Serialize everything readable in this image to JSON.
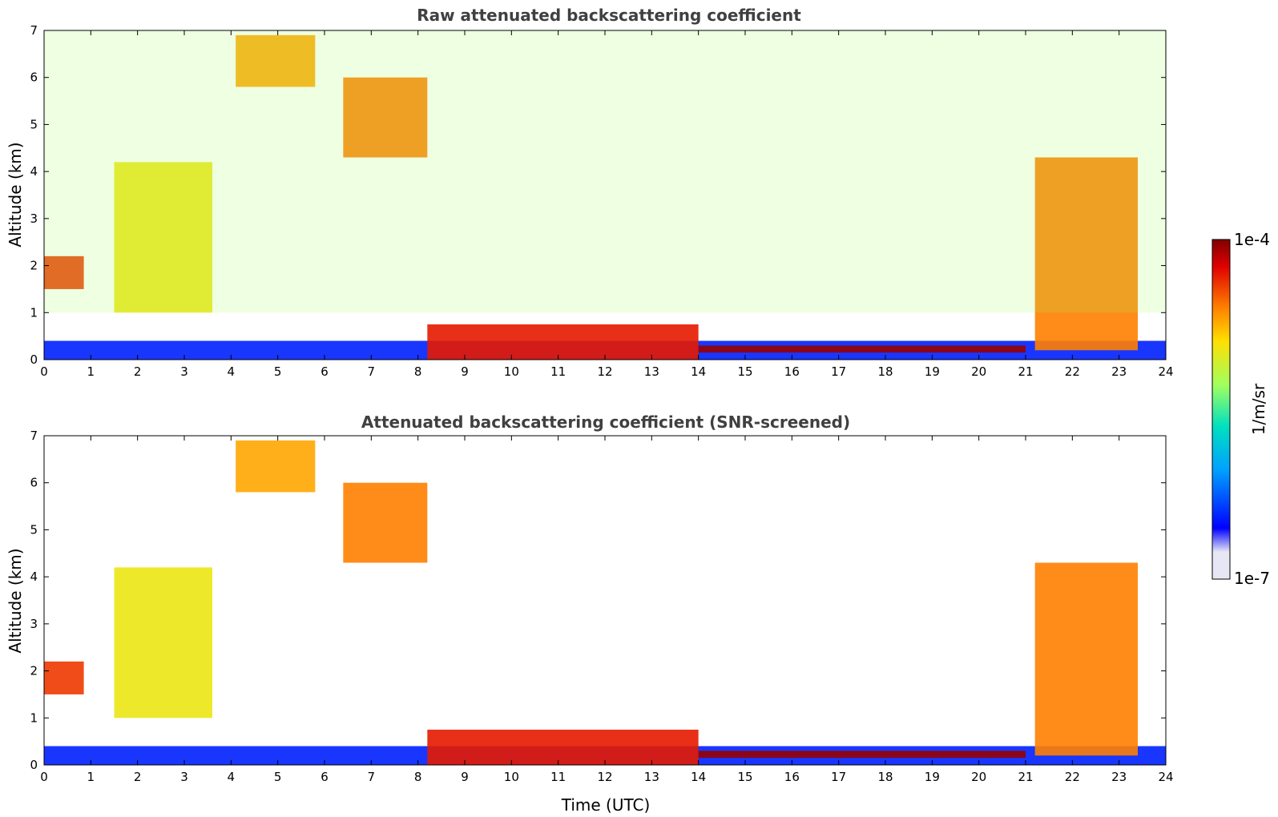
{
  "chart_data": [
    {
      "type": "heatmap",
      "title": "Raw attenuated backscattering coefficient",
      "xlabel": "",
      "ylabel": "Altitude (km)",
      "xlim": [
        0,
        24
      ],
      "ylim": [
        0,
        7
      ],
      "xticks": [
        "0",
        "1",
        "2",
        "3",
        "4",
        "5",
        "6",
        "7",
        "8",
        "9",
        "10",
        "11",
        "12",
        "13",
        "14",
        "15",
        "16",
        "17",
        "18",
        "19",
        "20",
        "21",
        "22",
        "23",
        "24"
      ],
      "yticks": [
        "0",
        "1",
        "2",
        "3",
        "4",
        "5",
        "6",
        "7"
      ],
      "features": [
        {
          "name": "boundary layer",
          "x": [
            0,
            24
          ],
          "y": [
            0,
            0.4
          ],
          "level": 0.15
        },
        {
          "name": "aerosol layer",
          "x": [
            8.2,
            14
          ],
          "y": [
            0,
            0.75
          ],
          "level": 0.85
        },
        {
          "name": "stable layer",
          "x": [
            14,
            21
          ],
          "y": [
            0.15,
            0.3
          ],
          "level": 0.97
        },
        {
          "name": "low cloud",
          "x": [
            0,
            0.85
          ],
          "y": [
            1.5,
            2.2
          ],
          "level": 0.82
        },
        {
          "name": "rising cloud",
          "x": [
            1.5,
            3.6
          ],
          "y": [
            1,
            4.2
          ],
          "level": 0.6
        },
        {
          "name": "cirrus",
          "x": [
            6.4,
            8.2
          ],
          "y": [
            4.3,
            6
          ],
          "level": 0.75
        },
        {
          "name": "high cloud",
          "x": [
            4.1,
            5.8
          ],
          "y": [
            5.8,
            6.9
          ],
          "level": 0.7
        },
        {
          "name": "convective cloud",
          "x": [
            21.2,
            23.4
          ],
          "y": [
            0.2,
            4.3
          ],
          "level": 0.75
        },
        {
          "name": "noise",
          "x": [
            0,
            24
          ],
          "y": [
            1,
            7
          ],
          "level": 0.5
        }
      ]
    },
    {
      "type": "heatmap",
      "title": "Attenuated backscattering coefficient (SNR-screened)",
      "xlabel": "Time (UTC)",
      "ylabel": "Altitude (km)",
      "xlim": [
        0,
        24
      ],
      "ylim": [
        0,
        7
      ],
      "xticks": [
        "0",
        "1",
        "2",
        "3",
        "4",
        "5",
        "6",
        "7",
        "8",
        "9",
        "10",
        "11",
        "12",
        "13",
        "14",
        "15",
        "16",
        "17",
        "18",
        "19",
        "20",
        "21",
        "22",
        "23",
        "24"
      ],
      "yticks": [
        "0",
        "1",
        "2",
        "3",
        "4",
        "5",
        "6",
        "7"
      ],
      "features": [
        {
          "name": "boundary layer",
          "x": [
            0,
            24
          ],
          "y": [
            0,
            0.4
          ],
          "level": 0.15
        },
        {
          "name": "aerosol layer",
          "x": [
            8.2,
            14
          ],
          "y": [
            0,
            0.75
          ],
          "level": 0.85
        },
        {
          "name": "stable layer",
          "x": [
            14,
            21
          ],
          "y": [
            0.15,
            0.3
          ],
          "level": 0.97
        },
        {
          "name": "low cloud",
          "x": [
            0,
            0.85
          ],
          "y": [
            1.5,
            2.2
          ],
          "level": 0.82
        },
        {
          "name": "rising cloud",
          "x": [
            1.5,
            3.6
          ],
          "y": [
            1,
            4.2
          ],
          "level": 0.6
        },
        {
          "name": "cirrus",
          "x": [
            6.4,
            8.2
          ],
          "y": [
            4.3,
            6
          ],
          "level": 0.75
        },
        {
          "name": "high cloud",
          "x": [
            4.1,
            5.8
          ],
          "y": [
            5.8,
            6.9
          ],
          "level": 0.7
        },
        {
          "name": "convective cloud",
          "x": [
            21.2,
            23.4
          ],
          "y": [
            0.2,
            4.3
          ],
          "level": 0.75
        }
      ]
    }
  ],
  "colorbar": {
    "max_label": "1e-4",
    "min_label": "1e-7",
    "unit_label": "1/m/sr",
    "colormap": "jet",
    "colors": [
      "#e6e6f5",
      "#0000ff",
      "#00a0ff",
      "#00e0c0",
      "#a0ff60",
      "#ffe000",
      "#ff8000",
      "#e00000",
      "#800000"
    ]
  }
}
